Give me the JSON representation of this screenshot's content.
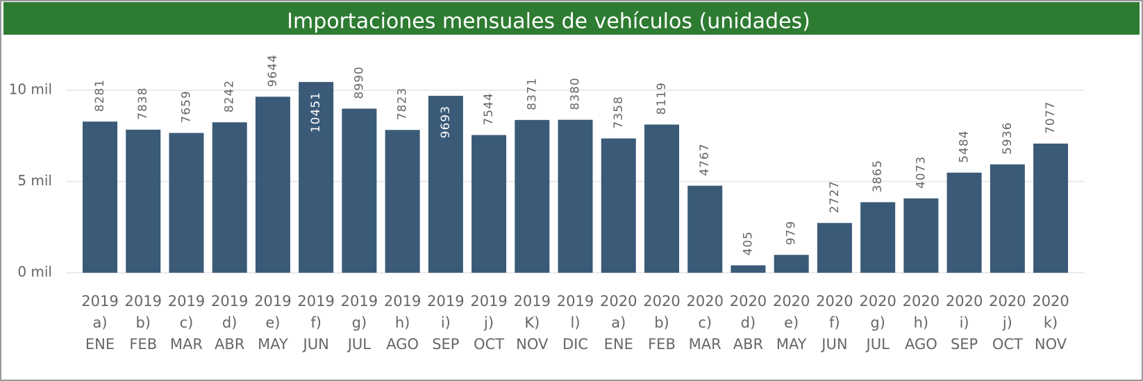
{
  "chart_data": {
    "type": "bar",
    "title": "Importaciones mensuales de vehículos (unidades)",
    "categories": [
      [
        "2019",
        "a)",
        "ENE"
      ],
      [
        "2019",
        "b)",
        "FEB"
      ],
      [
        "2019",
        "c)",
        "MAR"
      ],
      [
        "2019",
        "d)",
        "ABR"
      ],
      [
        "2019",
        "e)",
        "MAY"
      ],
      [
        "2019",
        "f)",
        "JUN"
      ],
      [
        "2019",
        "g)",
        "JUL"
      ],
      [
        "2019",
        "h)",
        "AGO"
      ],
      [
        "2019",
        "i)",
        "SEP"
      ],
      [
        "2019",
        "j)",
        "OCT"
      ],
      [
        "2019",
        "K)",
        "NOV"
      ],
      [
        "2019",
        "l)",
        "DIC"
      ],
      [
        "2020",
        "a)",
        "ENE"
      ],
      [
        "2020",
        "b)",
        "FEB"
      ],
      [
        "2020",
        "c)",
        "MAR"
      ],
      [
        "2020",
        "d)",
        "ABR"
      ],
      [
        "2020",
        "e)",
        "MAY"
      ],
      [
        "2020",
        "f)",
        "JUN"
      ],
      [
        "2020",
        "g)",
        "JUL"
      ],
      [
        "2020",
        "h)",
        "AGO"
      ],
      [
        "2020",
        "i)",
        "SEP"
      ],
      [
        "2020",
        "j)",
        "OCT"
      ],
      [
        "2020",
        "k)",
        "NOV"
      ]
    ],
    "values": [
      8281,
      7838,
      7659,
      8242,
      9644,
      10451,
      8990,
      7823,
      9693,
      7544,
      8371,
      8380,
      7358,
      8119,
      4767,
      405,
      979,
      2727,
      3865,
      4073,
      5484,
      5936,
      7077
    ],
    "color": "#3a5a78",
    "ylim": [
      0,
      11000
    ],
    "yticks": [
      {
        "value": 0,
        "label": "0 mil"
      },
      {
        "value": 5000,
        "label": "5 mil"
      },
      {
        "value": 10000,
        "label": "10 mil"
      }
    ],
    "grid": true
  }
}
